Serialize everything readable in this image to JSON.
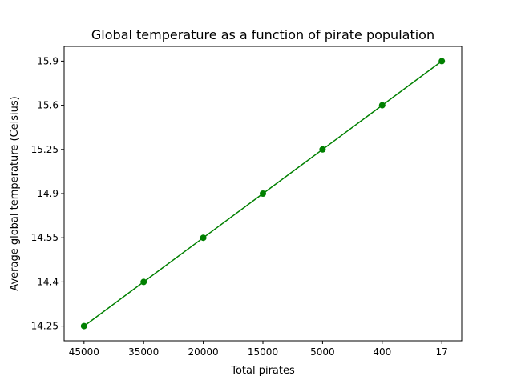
{
  "chart_data": {
    "type": "line",
    "title": "Global temperature as a function of pirate population",
    "xlabel": "Total pirates",
    "ylabel": "Average global temperature (Celsius)",
    "categories": [
      "45000",
      "35000",
      "20000",
      "15000",
      "5000",
      "400",
      "17"
    ],
    "y_tick_labels": [
      "14.25",
      "14.4",
      "14.55",
      "14.9",
      "15.25",
      "15.6",
      "15.9"
    ],
    "series": [
      {
        "values": [
          14.25,
          14.4,
          14.55,
          14.9,
          15.25,
          15.6,
          15.9
        ],
        "color": "#008000",
        "marker": "circle"
      }
    ],
    "x_scale": "categorical",
    "y_scale": "categorical",
    "grid": false,
    "legend": "none"
  }
}
